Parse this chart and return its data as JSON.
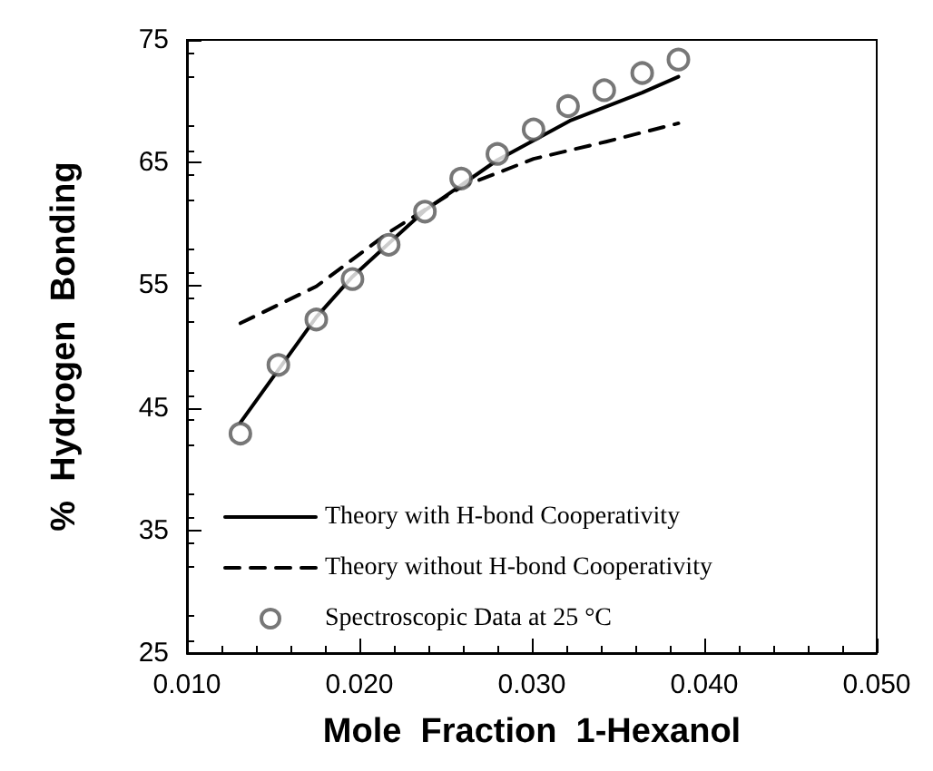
{
  "chart_data": {
    "type": "line",
    "xlabel": "Mole  Fraction  1-Hexanol",
    "ylabel": "%  Hydrogen  Bonding",
    "xlim": [
      0.01,
      0.05
    ],
    "xticks": [
      {
        "value": 0.01,
        "label": "0.010"
      },
      {
        "value": 0.02,
        "label": "0.020"
      },
      {
        "value": 0.03,
        "label": "0.030"
      },
      {
        "value": 0.04,
        "label": "0.040"
      },
      {
        "value": 0.05,
        "label": "0.050"
      }
    ],
    "ylim": [
      25,
      75
    ],
    "yticks": [
      25,
      35,
      45,
      55,
      65,
      75
    ],
    "grid": false,
    "legend": "bottom",
    "series": [
      {
        "name": "Theory with H-bond Cooperativity",
        "color": "#000000",
        "line_style": "solid",
        "marker": "none",
        "x": [
          0.0131,
          0.0175,
          0.0196,
          0.0238,
          0.028,
          0.0322,
          0.0364,
          0.0385
        ],
        "values": [
          43.8,
          52.4,
          55.7,
          61.1,
          65.2,
          68.4,
          70.7,
          72.0
        ]
      },
      {
        "name": "Theory without H-bond Cooperativity",
        "color": "#000000",
        "line_style": "dashed",
        "marker": "none",
        "x": [
          0.0131,
          0.0175,
          0.0217,
          0.0259,
          0.0301,
          0.0343,
          0.0385
        ],
        "values": [
          51.9,
          54.9,
          59.3,
          63.0,
          65.3,
          66.7,
          68.2
        ]
      },
      {
        "name": "Spectroscopic Data at 25 °C",
        "type": "scatter",
        "color": "#555555",
        "marker": "circle",
        "x": [
          0.0131,
          0.0153,
          0.0175,
          0.0196,
          0.0217,
          0.0238,
          0.0259,
          0.028,
          0.0301,
          0.0321,
          0.0342,
          0.0364,
          0.0385
        ],
        "values": [
          42.9,
          48.5,
          52.2,
          55.5,
          58.3,
          61.0,
          63.7,
          65.7,
          67.7,
          69.6,
          70.9,
          72.3,
          73.4
        ]
      }
    ]
  }
}
